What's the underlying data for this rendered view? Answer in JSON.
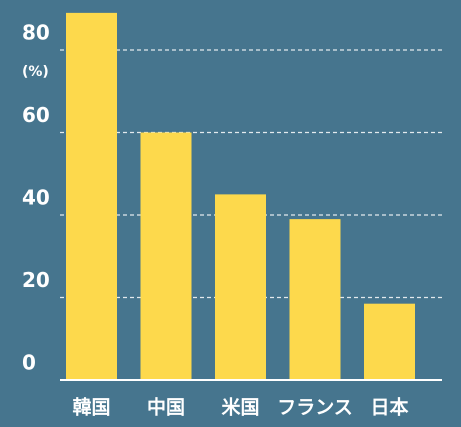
{
  "chart_data": {
    "type": "bar",
    "y_label": "(%)",
    "categories": [
      "韓国",
      "中国",
      "米国",
      "フランス",
      "日本"
    ],
    "values": [
      89,
      60,
      45,
      39,
      18.5
    ],
    "color": "#fdd94c",
    "ylim": [
      0,
      90
    ],
    "yticks": [
      0,
      20,
      40,
      60,
      80
    ],
    "grid": true
  }
}
